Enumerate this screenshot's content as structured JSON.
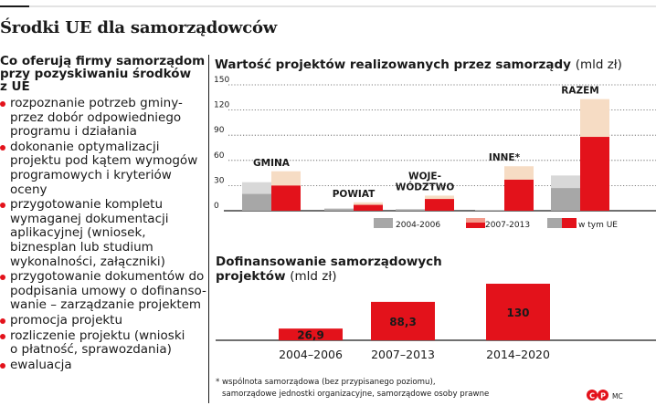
{
  "title": "Środki UE dla samorządowców",
  "left": {
    "heading": [
      "Co oferują firmy samorządom",
      "przy pozyskiwaniu środków",
      "z UE"
    ],
    "items": [
      [
        "rozpoznanie potrzeb gminy-",
        "przez dobór odpowiedniego",
        "programu i działania"
      ],
      [
        "dokonanie optymalizacji",
        "projektu pod kątem wymogów",
        "programowych i kryteriów",
        "oceny"
      ],
      [
        "przygotowanie kompletu",
        "wymaganej dokumentacji",
        "aplikacyjnej (wniosek,",
        "biznesplan lub studium",
        "wykonalności, załączniki)"
      ],
      [
        "przygotowanie dokumentów do",
        "podpisania umowy o dofinanso-",
        "wanie – zarządzanie projektem"
      ],
      [
        "promocja projektu"
      ],
      [
        "rozliczenie projektu (wnioski",
        "o płatność, sprawozdania)"
      ],
      [
        "ewaluacja"
      ]
    ]
  },
  "colors": {
    "red": "#e3121b",
    "red_light": "#f39b8c",
    "gray": "#a7a7a7",
    "gray_light": "#d8d8d8",
    "beige": "#f6dcc4",
    "axis": "#1a1a1a"
  },
  "chart_data": [
    {
      "type": "bar",
      "title": "Wartość projektów realizowanych przez samorządy",
      "unit": "(mld zł)",
      "yticks": [
        "0",
        "30",
        "60",
        "90",
        "120",
        "150"
      ],
      "ylim": [
        0,
        150
      ],
      "grid": true,
      "categories": [
        {
          "lines": [
            "GMINA"
          ]
        },
        {
          "lines": [
            "POWIAT"
          ]
        },
        {
          "lines": [
            "WOJE-",
            "WÓDZTWO"
          ]
        },
        {
          "lines": [
            "INNE*"
          ]
        },
        {
          "lines": [
            "RAZEM"
          ]
        }
      ],
      "series": [
        {
          "name": "2004-2006",
          "total": [
            34,
            3,
            2,
            0.5,
            42
          ],
          "ue": [
            20,
            2,
            1.5,
            0.3,
            27
          ]
        },
        {
          "name": "2007-2013",
          "total": [
            47,
            10,
            18,
            53,
            133
          ],
          "ue": [
            30,
            7,
            14,
            37,
            88
          ]
        }
      ],
      "legend": [
        "2004-2006",
        "2007-2013",
        "w tym UE"
      ],
      "legend_position": "bottom"
    },
    {
      "type": "bar",
      "title": [
        "Dofinansowanie samorządowych",
        "projektów"
      ],
      "unit": "(mld zł)",
      "categories": [
        "2004–2006",
        "2007–2013",
        "2014–2020"
      ],
      "values": [
        26.9,
        88.3,
        130
      ],
      "labels": [
        "26,9",
        "88,3",
        "130"
      ]
    }
  ],
  "footnote": [
    "* wspólnota samorządowa (bez przypisanego poziomu),",
    "samorządowe jednostki organizacyjne, samorządowe osoby prawne"
  ],
  "credit": "MC"
}
